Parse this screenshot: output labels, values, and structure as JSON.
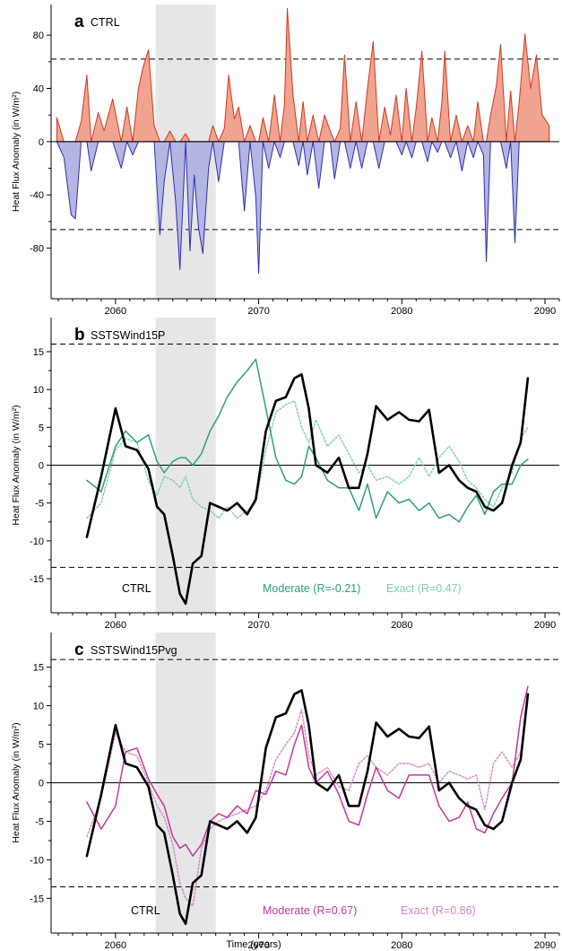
{
  "chart_data": [
    {
      "type": "area",
      "panel_letter": "a",
      "panel_name": "CTRL",
      "title": "CTRL",
      "xlabel": "",
      "ylabel": "Heat Flux Anomaly  (in W/m²)",
      "xlim": [
        2055.5,
        2091
      ],
      "ylim": [
        -118,
        103
      ],
      "x_ticks": [
        2060,
        2070,
        2080,
        2090
      ],
      "y_ticks": [
        80,
        40,
        0,
        -40,
        -80
      ],
      "y_tick_labels": [
        "80",
        "40",
        "0",
        "-40",
        "-80"
      ],
      "shaded_region": [
        2062.8,
        2067.0
      ],
      "threshold_lines": [
        62,
        -66
      ],
      "positive_color": "#d7351f",
      "positive_fill": "#f0a48f",
      "negative_color": "#2d2db8",
      "negative_fill": "#b3b6e0",
      "spikes": [
        [
          2055.9,
          18
        ],
        [
          2056.4,
          -12
        ],
        [
          2056.9,
          -55
        ],
        [
          2057.2,
          -58
        ],
        [
          2057.6,
          15
        ],
        [
          2058.0,
          50
        ],
        [
          2058.3,
          -22
        ],
        [
          2058.8,
          22
        ],
        [
          2059.2,
          8
        ],
        [
          2059.8,
          32
        ],
        [
          2060.4,
          -20
        ],
        [
          2060.8,
          26
        ],
        [
          2061.2,
          -10
        ],
        [
          2061.6,
          40
        ],
        [
          2061.9,
          55
        ],
        [
          2062.3,
          69
        ],
        [
          2062.7,
          12
        ],
        [
          2063.1,
          -70
        ],
        [
          2063.4,
          -30
        ],
        [
          2063.8,
          8
        ],
        [
          2064.2,
          -45
        ],
        [
          2064.5,
          -96
        ],
        [
          2064.9,
          6
        ],
        [
          2065.2,
          -82
        ],
        [
          2065.5,
          -25
        ],
        [
          2065.8,
          -65
        ],
        [
          2066.1,
          -84
        ],
        [
          2066.5,
          -20
        ],
        [
          2066.8,
          12
        ],
        [
          2067.2,
          -30
        ],
        [
          2067.6,
          10
        ],
        [
          2067.9,
          50
        ],
        [
          2068.3,
          17
        ],
        [
          2068.6,
          26
        ],
        [
          2069.0,
          -52
        ],
        [
          2069.4,
          12
        ],
        [
          2069.8,
          -42
        ],
        [
          2070.0,
          -99
        ],
        [
          2070.3,
          18
        ],
        [
          2070.7,
          -20
        ],
        [
          2071.1,
          35
        ],
        [
          2071.5,
          -12
        ],
        [
          2071.8,
          28
        ],
        [
          2072.0,
          100
        ],
        [
          2072.4,
          35
        ],
        [
          2072.8,
          -18
        ],
        [
          2073.1,
          30
        ],
        [
          2073.4,
          -25
        ],
        [
          2073.8,
          20
        ],
        [
          2074.2,
          -35
        ],
        [
          2074.6,
          20
        ],
        [
          2075.0,
          8
        ],
        [
          2075.3,
          -28
        ],
        [
          2075.7,
          10
        ],
        [
          2076.0,
          65
        ],
        [
          2076.4,
          -20
        ],
        [
          2076.8,
          30
        ],
        [
          2077.2,
          -20
        ],
        [
          2077.6,
          40
        ],
        [
          2078.0,
          75
        ],
        [
          2078.4,
          -20
        ],
        [
          2078.8,
          26
        ],
        [
          2079.2,
          5
        ],
        [
          2079.6,
          35
        ],
        [
          2080.0,
          -10
        ],
        [
          2080.3,
          40
        ],
        [
          2080.7,
          -12
        ],
        [
          2081.0,
          25
        ],
        [
          2081.4,
          68
        ],
        [
          2081.8,
          -15
        ],
        [
          2082.1,
          18
        ],
        [
          2082.5,
          -8
        ],
        [
          2082.8,
          30
        ],
        [
          2083.0,
          68
        ],
        [
          2083.4,
          -12
        ],
        [
          2083.8,
          20
        ],
        [
          2084.2,
          -22
        ],
        [
          2084.6,
          12
        ],
        [
          2085.0,
          -12
        ],
        [
          2085.3,
          30
        ],
        [
          2085.7,
          -10
        ],
        [
          2085.9,
          -90
        ],
        [
          2086.2,
          20
        ],
        [
          2086.6,
          42
        ],
        [
          2086.9,
          73
        ],
        [
          2087.3,
          -20
        ],
        [
          2087.6,
          38
        ],
        [
          2087.9,
          -76
        ],
        [
          2088.2,
          30
        ],
        [
          2088.6,
          81
        ],
        [
          2089.0,
          40
        ],
        [
          2089.4,
          65
        ],
        [
          2089.8,
          20
        ],
        [
          2090.3,
          12
        ]
      ]
    },
    {
      "type": "line",
      "panel_letter": "b",
      "panel_name": "SSTSWind15P",
      "title": "SSTSWind15P",
      "xlabel": "",
      "ylabel": "Heat Flux Anomaly  (in W/m²)",
      "xlim": [
        2055.5,
        2091
      ],
      "ylim": [
        -19.5,
        19.5
      ],
      "x_ticks": [
        2060,
        2070,
        2080,
        2090
      ],
      "y_ticks": [
        15,
        10,
        5,
        0,
        -5,
        -10,
        -15
      ],
      "y_tick_labels": [
        "15",
        "10",
        "5",
        "0",
        "-5",
        "-10",
        "-15"
      ],
      "shaded_region": [
        2062.8,
        2067.0
      ],
      "threshold_lines": [
        16,
        -13.5
      ],
      "x": [
        2058.0,
        2059.0,
        2060.0,
        2060.7,
        2061.5,
        2062.3,
        2062.9,
        2063.4,
        2064.0,
        2064.5,
        2064.9,
        2065.4,
        2066.0,
        2066.6,
        2067.2,
        2067.8,
        2068.5,
        2069.2,
        2069.8,
        2070.5,
        2071.2,
        2071.9,
        2072.5,
        2073.0,
        2073.5,
        2074.0,
        2074.8,
        2075.6,
        2076.3,
        2077.0,
        2077.6,
        2078.2,
        2079.0,
        2079.8,
        2080.5,
        2081.2,
        2081.9,
        2082.6,
        2083.3,
        2084.0,
        2084.6,
        2085.2,
        2085.8,
        2086.4,
        2087.0,
        2087.7,
        2088.3,
        2088.8
      ],
      "series": [
        {
          "name": "CTRL",
          "label": "CTRL",
          "color": "#000000",
          "style": "solid",
          "width": 2.6,
          "values": [
            -9.5,
            -1.5,
            7.5,
            2.5,
            2.0,
            -0.5,
            -5.5,
            -6.5,
            -12.0,
            -17.0,
            -18.3,
            -13.0,
            -12.0,
            -5.0,
            -5.5,
            -6.0,
            -5.0,
            -6.5,
            -4.5,
            4.5,
            8.5,
            9.0,
            11.5,
            12.0,
            7.5,
            0.0,
            -1.0,
            1.0,
            -3.0,
            -3.0,
            1.5,
            7.8,
            6.0,
            7.0,
            6.0,
            5.8,
            7.3,
            -1.0,
            0.0,
            -2.0,
            -3.0,
            -3.5,
            -5.5,
            -6.0,
            -5.0,
            0.0,
            3.0,
            11.5
          ]
        },
        {
          "name": "Moderate",
          "label": "Moderate (R=-0.21)",
          "color": "#2f9e7e",
          "style": "solid",
          "width": 1.5,
          "values": [
            -2.0,
            -3.5,
            2.5,
            4.5,
            3.0,
            4.0,
            0.5,
            -1.0,
            0.5,
            1.0,
            1.0,
            0.0,
            1.5,
            4.5,
            6.5,
            9.0,
            11.0,
            12.5,
            14.0,
            7.5,
            1.0,
            -2.0,
            -2.5,
            -1.5,
            2.5,
            1.0,
            -2.0,
            -3.0,
            -3.0,
            -6.0,
            -2.5,
            -7.0,
            -3.5,
            -5.0,
            -4.5,
            -6.0,
            -5.0,
            -7.0,
            -6.5,
            -7.5,
            -5.5,
            -4.0,
            -6.5,
            -3.5,
            -2.5,
            -2.5,
            0.0,
            0.8
          ]
        },
        {
          "name": "Exact",
          "label": "Exact (R=0.47)",
          "color": "#7ecfae",
          "style": "dotted",
          "width": 1.4,
          "values": [
            -7.0,
            -5.0,
            2.0,
            3.5,
            3.0,
            -2.0,
            -4.0,
            -1.5,
            -2.0,
            -3.0,
            -1.5,
            -4.5,
            -5.5,
            -6.0,
            -7.0,
            -5.5,
            -7.0,
            -6.0,
            -5.0,
            2.0,
            7.0,
            8.0,
            8.5,
            5.0,
            3.0,
            6.0,
            2.5,
            4.0,
            1.5,
            -1.0,
            0.0,
            -2.0,
            -1.5,
            -2.5,
            -1.5,
            1.0,
            -1.5,
            1.0,
            2.5,
            0.5,
            -2.0,
            -3.0,
            -4.5,
            -5.5,
            -3.0,
            -1.0,
            3.5,
            5.0
          ]
        }
      ]
    },
    {
      "type": "line",
      "panel_letter": "c",
      "panel_name": "SSTSWind15Pvg",
      "title": "SSTSWind15Pvg",
      "xlabel": "Time (years)",
      "ylabel": "Heat Flux Anomaly  (in W/m²)",
      "xlim": [
        2055.5,
        2091
      ],
      "ylim": [
        -19.5,
        19.5
      ],
      "x_ticks": [
        2060,
        2070,
        2080,
        2090
      ],
      "y_ticks": [
        15,
        10,
        5,
        0,
        -5,
        -10,
        -15
      ],
      "y_tick_labels": [
        "15",
        "10",
        "5",
        "0",
        "-5",
        "-10",
        "-15"
      ],
      "shaded_region": [
        2062.8,
        2067.0
      ],
      "threshold_lines": [
        16,
        -13.5
      ],
      "x": [
        2058.0,
        2059.0,
        2060.0,
        2060.7,
        2061.5,
        2062.3,
        2062.9,
        2063.4,
        2064.0,
        2064.5,
        2064.9,
        2065.4,
        2066.0,
        2066.6,
        2067.2,
        2067.8,
        2068.5,
        2069.2,
        2069.8,
        2070.5,
        2071.2,
        2071.9,
        2072.5,
        2073.0,
        2073.5,
        2074.0,
        2074.8,
        2075.6,
        2076.3,
        2077.0,
        2077.6,
        2078.2,
        2079.0,
        2079.8,
        2080.5,
        2081.2,
        2081.9,
        2082.6,
        2083.3,
        2084.0,
        2084.6,
        2085.2,
        2085.8,
        2086.4,
        2087.0,
        2087.7,
        2088.3,
        2088.8
      ],
      "series": [
        {
          "name": "CTRL",
          "label": "CTRL",
          "color": "#000000",
          "style": "solid",
          "width": 2.6,
          "values": [
            -9.5,
            -1.5,
            7.5,
            2.5,
            2.0,
            -0.5,
            -5.5,
            -6.5,
            -12.0,
            -17.0,
            -18.3,
            -13.0,
            -12.0,
            -5.0,
            -5.5,
            -6.0,
            -5.0,
            -6.5,
            -4.5,
            4.5,
            8.5,
            9.0,
            11.5,
            12.0,
            7.5,
            0.0,
            -1.0,
            1.0,
            -3.0,
            -3.0,
            1.5,
            7.8,
            6.0,
            7.0,
            6.0,
            5.8,
            7.3,
            -1.0,
            0.0,
            -2.0,
            -3.0,
            -3.5,
            -5.5,
            -6.0,
            -5.0,
            0.0,
            3.0,
            11.5
          ]
        },
        {
          "name": "Moderate",
          "label": "Moderate (R=0.67)",
          "color": "#c2379a",
          "style": "solid",
          "width": 1.5,
          "values": [
            -2.5,
            -6.0,
            -3.0,
            4.0,
            4.5,
            0.5,
            -1.5,
            -3.0,
            -7.0,
            -8.5,
            -8.0,
            -9.5,
            -8.0,
            -5.0,
            -4.0,
            -4.5,
            -3.0,
            -4.0,
            -1.0,
            -1.5,
            1.5,
            1.0,
            5.0,
            7.5,
            2.0,
            0.0,
            1.5,
            -1.5,
            -5.0,
            -5.5,
            -1.5,
            2.0,
            -1.0,
            -2.0,
            1.0,
            1.0,
            1.0,
            -3.0,
            -5.0,
            -4.5,
            -2.5,
            -6.0,
            -6.5,
            -4.0,
            -2.0,
            0.0,
            8.5,
            12.5
          ]
        },
        {
          "name": "Exact",
          "label": "Exact (R=0.86)",
          "color": "#d487c5",
          "style": "dotted",
          "width": 1.4,
          "values": [
            -7.0,
            -2.0,
            6.5,
            4.0,
            3.5,
            0.0,
            -3.0,
            -4.5,
            -8.0,
            -13.0,
            -15.0,
            -16.0,
            -8.5,
            -6.0,
            -5.0,
            -4.5,
            -4.0,
            -3.5,
            -3.0,
            -1.0,
            3.0,
            5.0,
            6.5,
            9.5,
            3.5,
            1.0,
            2.0,
            -0.5,
            -1.0,
            2.5,
            3.5,
            2.0,
            1.0,
            2.5,
            2.5,
            2.0,
            2.5,
            0.0,
            1.5,
            1.0,
            0.5,
            1.0,
            -3.5,
            2.5,
            4.0,
            2.0,
            4.0,
            10.5
          ]
        }
      ]
    }
  ]
}
